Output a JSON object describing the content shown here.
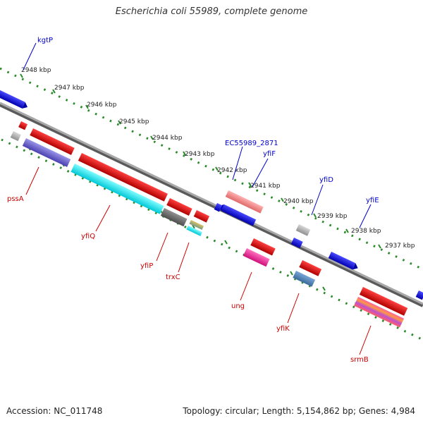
{
  "title": "Escherichia coli 55989, complete genome",
  "footer": {
    "accession": "Accession: NC_011748",
    "topology": "Topology: circular; Length: 5,154,862 bp; Genes: 4,984"
  },
  "colors": {
    "backbone": "#8c8c8c",
    "scale_dots": "#2a8a2a",
    "label_blue": "#0000cc",
    "label_red": "#cc0000"
  },
  "scale": [
    "2948 kbp",
    "2947 kbp",
    "2946 kbp",
    "2945 kbp",
    "2944 kbp",
    "2943 kbp",
    "2942 kbp",
    "2941 kbp",
    "2940 kbp",
    "2939 kbp",
    "2938 kbp",
    "2937 kbp"
  ],
  "labels": {
    "kgtP": "kgtP",
    "ec2871": "EC55989_2871",
    "yfiF": "yfiF",
    "yfiD": "yfiD",
    "yfiE": "yfiE",
    "pssA": "pssA",
    "yfiQ": "yfiQ",
    "yfiP": "yfiP",
    "trxC": "trxC",
    "ung": "ung",
    "yfiK": "yfiK",
    "srmB": "srmB"
  }
}
